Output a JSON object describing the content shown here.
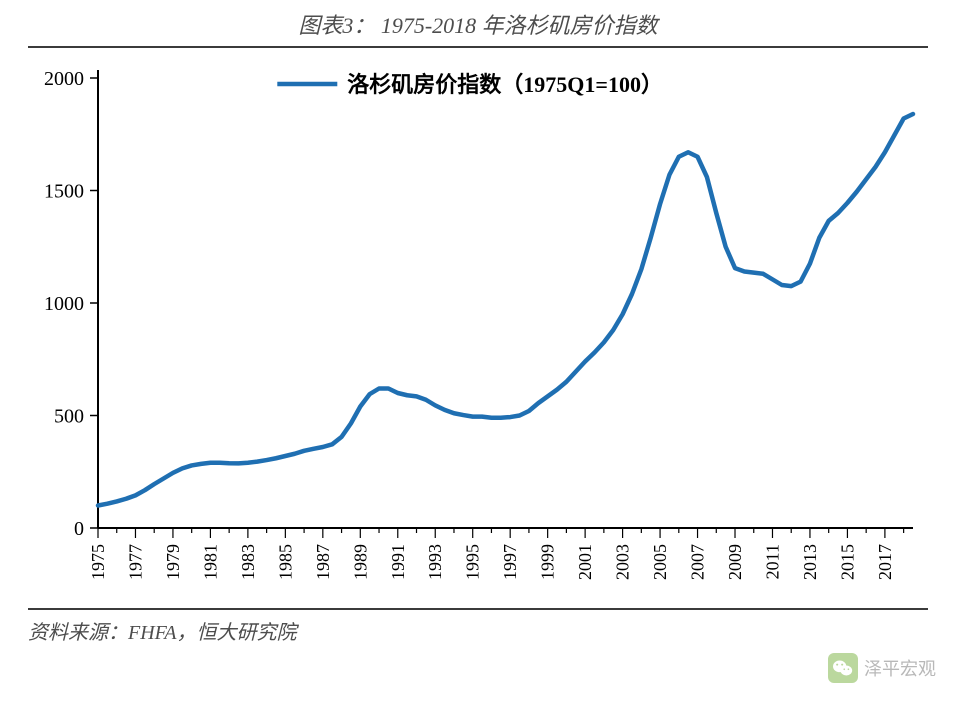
{
  "title": "图表3：  1975-2018 年洛杉矶房价指数",
  "source": "资料来源：FHFA，恒大研究院",
  "watermark": "泽平宏观",
  "chart": {
    "type": "line",
    "legend_label": "洛杉矶房价指数（1975Q1=100）",
    "legend_fontsize": 22,
    "legend_position": "top-center",
    "series_color": "#1f6fb2",
    "line_width": 4.5,
    "background_color": "#ffffff",
    "axis_color": "#000000",
    "axis_width": 2,
    "xlim": [
      1975,
      2018.5
    ],
    "ylim": [
      0,
      2000
    ],
    "yticks": [
      0,
      500,
      1000,
      1500,
      2000
    ],
    "ytick_fontsize": 20,
    "xticks": [
      1975,
      1977,
      1979,
      1981,
      1983,
      1985,
      1987,
      1989,
      1991,
      1993,
      1995,
      1997,
      1999,
      2001,
      2003,
      2005,
      2007,
      2009,
      2011,
      2013,
      2015,
      2017
    ],
    "xtick_fontsize": 18,
    "xtick_rotation": -90,
    "tick_length_minor": 5,
    "tick_length_major": 10,
    "data": [
      {
        "x": 1975.0,
        "y": 100
      },
      {
        "x": 1975.5,
        "y": 108
      },
      {
        "x": 1976.0,
        "y": 118
      },
      {
        "x": 1976.5,
        "y": 130
      },
      {
        "x": 1977.0,
        "y": 145
      },
      {
        "x": 1977.5,
        "y": 168
      },
      {
        "x": 1978.0,
        "y": 195
      },
      {
        "x": 1978.5,
        "y": 220
      },
      {
        "x": 1979.0,
        "y": 245
      },
      {
        "x": 1979.5,
        "y": 265
      },
      {
        "x": 1980.0,
        "y": 278
      },
      {
        "x": 1980.5,
        "y": 285
      },
      {
        "x": 1981.0,
        "y": 290
      },
      {
        "x": 1981.5,
        "y": 290
      },
      {
        "x": 1982.0,
        "y": 288
      },
      {
        "x": 1982.5,
        "y": 287
      },
      {
        "x": 1983.0,
        "y": 290
      },
      {
        "x": 1983.5,
        "y": 295
      },
      {
        "x": 1984.0,
        "y": 302
      },
      {
        "x": 1984.5,
        "y": 310
      },
      {
        "x": 1985.0,
        "y": 320
      },
      {
        "x": 1985.5,
        "y": 330
      },
      {
        "x": 1986.0,
        "y": 343
      },
      {
        "x": 1986.5,
        "y": 352
      },
      {
        "x": 1987.0,
        "y": 360
      },
      {
        "x": 1987.5,
        "y": 372
      },
      {
        "x": 1988.0,
        "y": 405
      },
      {
        "x": 1988.5,
        "y": 465
      },
      {
        "x": 1989.0,
        "y": 540
      },
      {
        "x": 1989.5,
        "y": 595
      },
      {
        "x": 1990.0,
        "y": 620
      },
      {
        "x": 1990.5,
        "y": 620
      },
      {
        "x": 1991.0,
        "y": 600
      },
      {
        "x": 1991.5,
        "y": 590
      },
      {
        "x": 1992.0,
        "y": 585
      },
      {
        "x": 1992.5,
        "y": 570
      },
      {
        "x": 1993.0,
        "y": 545
      },
      {
        "x": 1993.5,
        "y": 525
      },
      {
        "x": 1994.0,
        "y": 510
      },
      {
        "x": 1994.5,
        "y": 502
      },
      {
        "x": 1995.0,
        "y": 495
      },
      {
        "x": 1995.5,
        "y": 495
      },
      {
        "x": 1996.0,
        "y": 490
      },
      {
        "x": 1996.5,
        "y": 490
      },
      {
        "x": 1997.0,
        "y": 493
      },
      {
        "x": 1997.5,
        "y": 500
      },
      {
        "x": 1998.0,
        "y": 520
      },
      {
        "x": 1998.5,
        "y": 555
      },
      {
        "x": 1999.0,
        "y": 585
      },
      {
        "x": 1999.5,
        "y": 615
      },
      {
        "x": 2000.0,
        "y": 650
      },
      {
        "x": 2000.5,
        "y": 695
      },
      {
        "x": 2001.0,
        "y": 740
      },
      {
        "x": 2001.5,
        "y": 780
      },
      {
        "x": 2002.0,
        "y": 825
      },
      {
        "x": 2002.5,
        "y": 880
      },
      {
        "x": 2003.0,
        "y": 950
      },
      {
        "x": 2003.5,
        "y": 1040
      },
      {
        "x": 2004.0,
        "y": 1150
      },
      {
        "x": 2004.5,
        "y": 1290
      },
      {
        "x": 2005.0,
        "y": 1440
      },
      {
        "x": 2005.5,
        "y": 1570
      },
      {
        "x": 2006.0,
        "y": 1650
      },
      {
        "x": 2006.5,
        "y": 1670
      },
      {
        "x": 2007.0,
        "y": 1650
      },
      {
        "x": 2007.5,
        "y": 1560
      },
      {
        "x": 2008.0,
        "y": 1400
      },
      {
        "x": 2008.5,
        "y": 1250
      },
      {
        "x": 2009.0,
        "y": 1155
      },
      {
        "x": 2009.5,
        "y": 1140
      },
      {
        "x": 2010.0,
        "y": 1135
      },
      {
        "x": 2010.5,
        "y": 1130
      },
      {
        "x": 2011.0,
        "y": 1105
      },
      {
        "x": 2011.5,
        "y": 1080
      },
      {
        "x": 2012.0,
        "y": 1075
      },
      {
        "x": 2012.5,
        "y": 1095
      },
      {
        "x": 2013.0,
        "y": 1175
      },
      {
        "x": 2013.5,
        "y": 1290
      },
      {
        "x": 2014.0,
        "y": 1365
      },
      {
        "x": 2014.5,
        "y": 1400
      },
      {
        "x": 2015.0,
        "y": 1445
      },
      {
        "x": 2015.5,
        "y": 1495
      },
      {
        "x": 2016.0,
        "y": 1550
      },
      {
        "x": 2016.5,
        "y": 1605
      },
      {
        "x": 2017.0,
        "y": 1670
      },
      {
        "x": 2017.5,
        "y": 1745
      },
      {
        "x": 2018.0,
        "y": 1820
      },
      {
        "x": 2018.5,
        "y": 1840
      }
    ]
  }
}
